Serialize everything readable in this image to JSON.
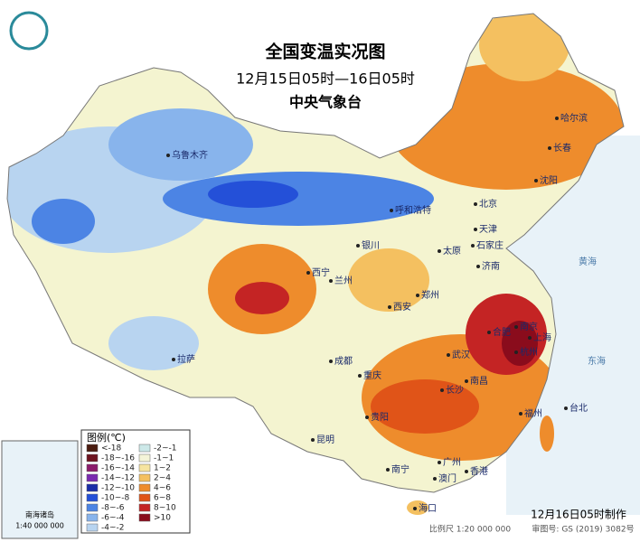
{
  "header": {
    "title": "全国变温实况图",
    "subtitle": "12月15日05时—16日05时",
    "org": "中央气象台"
  },
  "cities": [
    "乌鲁木齐",
    "哈尔滨",
    "长春",
    "沈阳",
    "呼和浩特",
    "北京",
    "天津",
    "银川",
    "太原",
    "石家庄",
    "西宁",
    "兰州",
    "济南",
    "郑州",
    "西安",
    "合肥",
    "南京",
    "上海",
    "拉萨",
    "成都",
    "武汉",
    "杭州",
    "南昌",
    "重庆",
    "长沙",
    "台北",
    "福州",
    "贵阳",
    "昆明",
    "南宁",
    "广州",
    "香港",
    "澳门",
    "海口"
  ],
  "sea_labels": [
    "黄海",
    "东海"
  ],
  "legend": {
    "title": "图例(℃)",
    "items": [
      {
        "label": "<-18",
        "color": "#4a1c10"
      },
      {
        "label": "-18~-16",
        "color": "#6e1420"
      },
      {
        "label": "-16~-14",
        "color": "#8c1c6c"
      },
      {
        "label": "-14~-12",
        "color": "#7a2ab0"
      },
      {
        "label": "-12~-10",
        "color": "#1a2ea8"
      },
      {
        "label": "-10~-8",
        "color": "#2450d8"
      },
      {
        "label": "-8~-6",
        "color": "#4c84e4"
      },
      {
        "label": "-6~-4",
        "color": "#88b4ec"
      },
      {
        "label": "-4~-2",
        "color": "#b8d4f0"
      },
      {
        "label": "-2~-1",
        "color": "#cce8e8"
      },
      {
        "label": "-1~1",
        "color": "#f4f4d8"
      },
      {
        "label": "1~2",
        "color": "#f6e4a0"
      },
      {
        "label": "2~4",
        "color": "#f4c060"
      },
      {
        "label": "4~6",
        "color": "#ee8c2c"
      },
      {
        "label": "6~8",
        "color": "#e05418"
      },
      {
        "label": "8~10",
        "color": "#c42424"
      },
      {
        "label": ">10",
        "color": "#8a0c1c"
      }
    ]
  },
  "inset": {
    "title": "南海诸岛",
    "scale": "1:40 000 000"
  },
  "footer": {
    "made": "12月16日05时制作",
    "scale": "比例尺 1:20 000 000",
    "approval": "审图号: GS (2019) 3082号"
  }
}
